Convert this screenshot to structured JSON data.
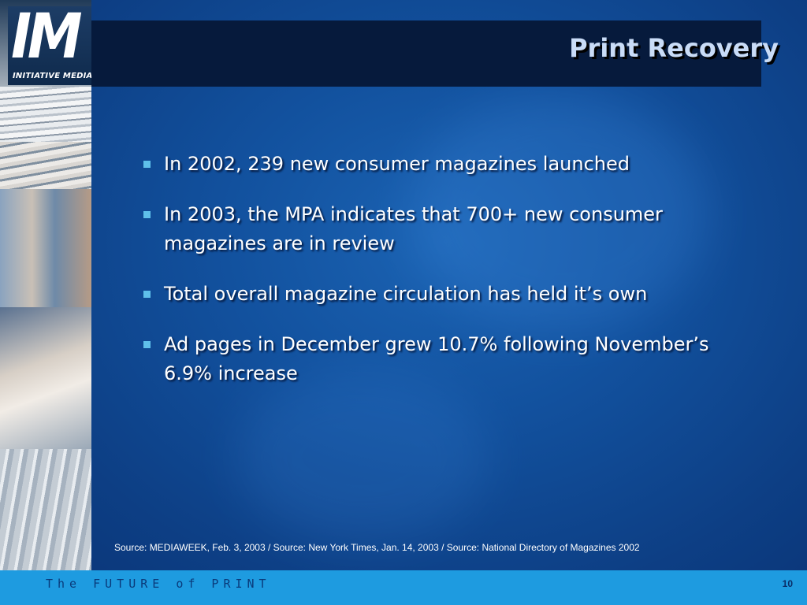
{
  "logo": {
    "mark": "IM",
    "name": "INITIATIVE MEDIA"
  },
  "title": "Print Recovery",
  "bullets": [
    "In 2002, 239 new consumer magazines launched",
    "In 2003, the MPA indicates that 700+ new consumer magazines are in review",
    "Total overall magazine circulation has held it’s own",
    "Ad pages in December grew 10.7% following November’s 6.9% increase"
  ],
  "source": "Source: MEDIAWEEK, Feb. 3, 2003  /   Source: New York Times, Jan. 14, 2003  /  Source:  National Directory of Magazines 2002",
  "footer": {
    "tagline": "The FUTURE of PRINT",
    "page_number": "10"
  },
  "colors": {
    "background": "#12519e",
    "title_bar": "#061a3c",
    "title_text": "#c9dcf7",
    "bullet_marker": "#5fc0ea",
    "footer": "#1e9be0"
  }
}
